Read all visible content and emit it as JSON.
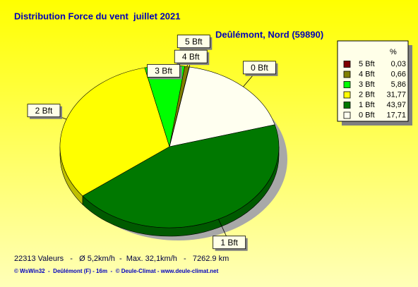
{
  "chart_data": {
    "type": "pie3d",
    "title": "Distribution Force du vent  juillet 2021",
    "subtitle": "Deûlémont, Nord (59890)",
    "legend_header": "%",
    "categories": [
      "5 Bft",
      "4 Bft",
      "3 Bft",
      "2 Bft",
      "1 Bft",
      "0 Bft"
    ],
    "values": [
      0.03,
      0.66,
      5.86,
      31.77,
      43.97,
      17.71
    ],
    "value_labels": [
      "0,03",
      "0,66",
      "5,86",
      "31,77",
      "43,97",
      "17,71"
    ],
    "colors": [
      "#800000",
      "#808000",
      "#00ff00",
      "#ffff00",
      "#007800",
      "#fffff0"
    ],
    "legend": "top-right",
    "footer": [
      "22313 Valeurs   -   Ø 5,2km/h  -  Max. 32,1km/h   -   7262.9 km",
      "© WsWin32  -  Deûlémont (F) - 16m  -  © Deule-Climat - www.deule-climat.net"
    ]
  }
}
